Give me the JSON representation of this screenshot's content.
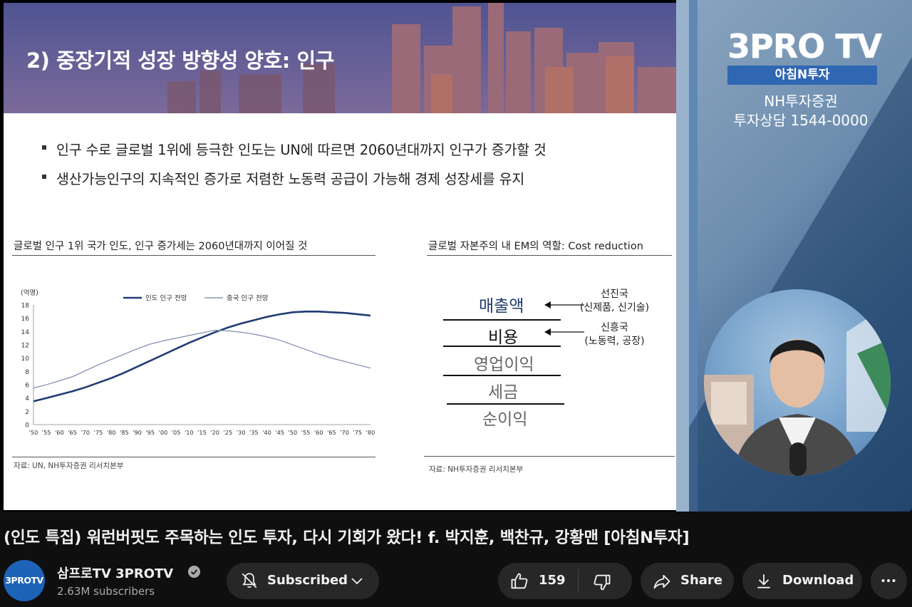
{
  "slide": {
    "title": "2) 중장기적 성장 방향성 양호: 인구",
    "bullets": [
      "인구 수로 글로벌 1위에 등극한 인도는 UN에 따르면 2060년대까지 인구가 증가할 것",
      "생산가능인구의 지속적인 증가로 저렴한 노동력 공급이 가능해 경제 성장세를 유지"
    ],
    "left_panel": {
      "title": "글로벌 인구 1위 국가 인도, 인구 증가세는 2060년대까지 이어질 것",
      "source": "자료: UN, NH투자증권 리서치본부"
    },
    "right_panel": {
      "title": "글로벌 자본주의 내 EM의 역할: Cost reduction",
      "items": [
        "매출액",
        "비용",
        "영업이익",
        "세금",
        "순이익"
      ],
      "note1_line1": "선진국",
      "note1_line2": "(신제품, 신기술)",
      "note2_line1": "신흥국",
      "note2_line2": "(노동력, 공장)",
      "source": "자료: NH투자증권 리서치본부"
    }
  },
  "chart_data": {
    "type": "line",
    "title": "글로벌 인구 1위 국가 인도, 인구 증가세는 2060년대까지 이어질 것",
    "ylabel": "(억명)",
    "xlabel": "",
    "ylim": [
      0,
      18
    ],
    "yticks": [
      0,
      2,
      4,
      6,
      8,
      10,
      12,
      14,
      16,
      18
    ],
    "x": [
      1950,
      1955,
      1960,
      1965,
      1970,
      1975,
      1980,
      1985,
      1990,
      1995,
      2000,
      2005,
      2010,
      2015,
      2020,
      2025,
      2030,
      2035,
      2040,
      2045,
      2050,
      2055,
      2060,
      2065,
      2070,
      2075,
      2080
    ],
    "xtick_labels": [
      "'50",
      "'55",
      "'60",
      "'65",
      "'70",
      "'75",
      "'80",
      "'85",
      "'90",
      "'95",
      "'00",
      "'05",
      "'10",
      "'15",
      "'20",
      "'25",
      "'30",
      "'35",
      "'40",
      "'45",
      "'50",
      "'55",
      "'60",
      "'65",
      "'70",
      "'75",
      "'80"
    ],
    "legend_position": "top-center",
    "series": [
      {
        "name": "인도 인구 전망",
        "color": "#1f3b73",
        "values": [
          3.5,
          4.0,
          4.5,
          5.0,
          5.6,
          6.3,
          7.0,
          7.8,
          8.7,
          9.6,
          10.5,
          11.4,
          12.3,
          13.1,
          13.9,
          14.6,
          15.2,
          15.7,
          16.2,
          16.6,
          16.9,
          17.0,
          17.0,
          16.9,
          16.8,
          16.6,
          16.4
        ]
      },
      {
        "name": "중국 인구 전망",
        "color": "#8c97b5",
        "values": [
          5.5,
          6.0,
          6.6,
          7.2,
          8.1,
          9.0,
          9.8,
          10.6,
          11.4,
          12.1,
          12.6,
          13.0,
          13.4,
          13.8,
          14.2,
          14.1,
          13.9,
          13.6,
          13.2,
          12.7,
          12.0,
          11.3,
          10.6,
          10.0,
          9.5,
          9.0,
          8.5
        ]
      }
    ]
  },
  "broadcast": {
    "logo": "3PRO TV",
    "program": "아침N투자",
    "sponsor": "NH투자증권",
    "phone": "투자상담 1544-0000"
  },
  "video": {
    "title": "(인도 특집) 워런버핏도 주목하는 인도 투자, 다시 기회가 왔다! f. 박지훈, 백찬규, 강황맨 [아침N투자]"
  },
  "channel": {
    "avatar_text": "3PROTV",
    "name": "삼프로TV 3PROTV",
    "subscribers": "2.63M subscribers"
  },
  "actions": {
    "subscribed_label": "Subscribed",
    "like_count": "159",
    "share_label": "Share",
    "download_label": "Download"
  },
  "icons": {
    "bell": "bell-off-icon",
    "chevron": "chevron-down-icon",
    "like": "thumbs-up-icon",
    "dislike": "thumbs-down-icon",
    "share": "share-arrow-icon",
    "download": "download-icon",
    "more": "more-horizontal-icon",
    "verified": "verified-check-icon"
  }
}
